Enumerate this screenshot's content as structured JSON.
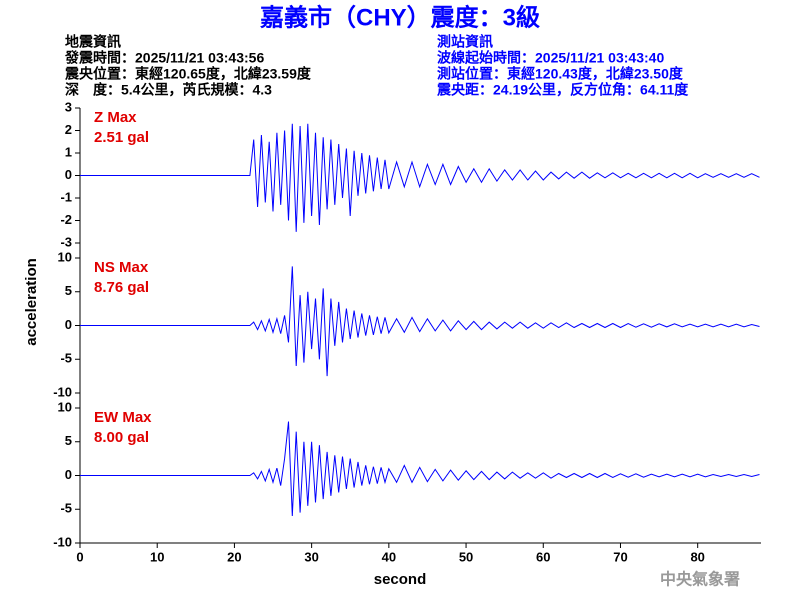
{
  "header": {
    "title": "嘉義市（CHY）震度：3級",
    "left": [
      "地震資訊",
      "發震時間：2025/11/21 03:43:56",
      "震央位置：東經120.65度，北緯23.59度",
      "深　度：5.4公里，芮氏規模：4.3"
    ],
    "right": [
      "測站資訊",
      "波線起始時間：2025/11/21 03:43:40",
      "測站位置：東經120.43度，北緯23.50度",
      "震央距：24.19公里，反方位角：64.11度"
    ]
  },
  "footer": "中央氣象署",
  "chart_data": [
    {
      "type": "line",
      "annotations": [
        "Z Max",
        "2.51 gal"
      ],
      "xlim": [
        0,
        88.2
      ],
      "ylim": [
        -3,
        3
      ],
      "yticks": [
        -3,
        -2,
        -1,
        0,
        1,
        2,
        3
      ],
      "x": [
        0,
        22,
        22.5,
        23,
        23.5,
        24,
        24.5,
        25,
        25.5,
        26,
        26.5,
        27,
        27.5,
        28,
        28.5,
        29,
        29.5,
        30,
        30.5,
        31,
        31.5,
        32,
        32.5,
        33,
        33.5,
        34,
        34.5,
        35,
        35.5,
        36,
        36.5,
        37,
        37.5,
        38,
        38.5,
        39,
        39.5,
        40,
        41,
        42,
        43,
        44,
        45,
        46,
        47,
        48,
        49,
        50,
        51,
        52,
        53,
        54,
        55,
        56,
        57,
        58,
        59,
        60,
        61,
        62,
        63,
        64,
        65,
        66,
        67,
        68,
        69,
        70,
        71,
        72,
        73,
        74,
        75,
        76,
        77,
        78,
        79,
        80,
        81,
        82,
        83,
        84,
        85,
        86,
        87,
        88
      ],
      "series": [
        {
          "color": "#0000ff",
          "values": [
            0,
            0,
            1.6,
            -1.4,
            1.8,
            -1.2,
            1.5,
            -1.6,
            1.9,
            -1.3,
            2.0,
            -2.0,
            2.3,
            -2.5,
            2.2,
            -2.1,
            2.3,
            -1.8,
            1.9,
            -2.2,
            1.7,
            -1.5,
            1.6,
            -1.3,
            1.4,
            -1.0,
            1.2,
            -1.8,
            1.1,
            -0.9,
            1.0,
            -0.8,
            0.9,
            -0.7,
            0.8,
            -0.6,
            0.7,
            -0.6,
            0.6,
            -0.5,
            0.6,
            -0.5,
            0.5,
            -0.4,
            0.5,
            -0.4,
            0.4,
            -0.3,
            0.3,
            -0.3,
            0.3,
            -0.25,
            0.25,
            -0.2,
            0.25,
            -0.2,
            0.2,
            -0.2,
            0.15,
            -0.15,
            0.15,
            -0.12,
            0.15,
            -0.12,
            0.12,
            -0.1,
            0.12,
            -0.1,
            0.1,
            -0.1,
            0.1,
            -0.1,
            0.1,
            -0.1,
            0.1,
            -0.1,
            0.1,
            -0.1,
            0.08,
            -0.08,
            0.08,
            -0.08,
            0.08,
            -0.08,
            0.08,
            -0.08
          ]
        }
      ]
    },
    {
      "type": "line",
      "annotations": [
        "NS Max",
        "8.76 gal"
      ],
      "ylabel": "acceleration",
      "xlim": [
        0,
        88.2
      ],
      "ylim": [
        -10,
        10
      ],
      "yticks": [
        -10,
        -5,
        0,
        5,
        10
      ],
      "x": [
        0,
        22,
        22.5,
        23,
        23.5,
        24,
        24.5,
        25,
        25.5,
        26,
        26.5,
        27,
        27.5,
        28,
        28.5,
        29,
        29.5,
        30,
        30.5,
        31,
        31.5,
        32,
        32.5,
        33,
        33.5,
        34,
        34.5,
        35,
        35.5,
        36,
        36.5,
        37,
        37.5,
        38,
        38.5,
        39,
        39.5,
        40,
        41,
        42,
        43,
        44,
        45,
        46,
        47,
        48,
        49,
        50,
        51,
        52,
        53,
        54,
        55,
        56,
        57,
        58,
        59,
        60,
        61,
        62,
        63,
        64,
        65,
        66,
        67,
        68,
        69,
        70,
        71,
        72,
        73,
        74,
        75,
        76,
        77,
        78,
        79,
        80,
        81,
        82,
        83,
        84,
        85,
        86,
        87,
        88
      ],
      "series": [
        {
          "color": "#0000ff",
          "values": [
            0,
            0,
            0.5,
            -0.6,
            0.7,
            -0.8,
            0.9,
            -1.0,
            1.0,
            -1.2,
            1.5,
            -2.5,
            8.76,
            -6.0,
            4.5,
            -5.5,
            5.0,
            -3.5,
            4.0,
            -5.0,
            5.5,
            -7.5,
            4.0,
            -3.0,
            3.5,
            -2.5,
            2.5,
            -2.0,
            2.2,
            -1.8,
            1.8,
            -1.5,
            1.5,
            -1.4,
            1.3,
            -1.2,
            1.2,
            -1.1,
            1.0,
            -1.0,
            1.2,
            -0.9,
            1.0,
            -0.8,
            0.8,
            -0.8,
            0.7,
            -0.6,
            0.6,
            -0.6,
            0.5,
            -0.5,
            0.5,
            -0.4,
            0.5,
            -0.4,
            0.4,
            -0.4,
            0.4,
            -0.3,
            0.4,
            -0.3,
            0.3,
            -0.3,
            0.3,
            -0.3,
            0.3,
            -0.3,
            0.3,
            -0.25,
            0.25,
            -0.25,
            0.25,
            -0.2,
            0.25,
            -0.2,
            0.2,
            -0.2,
            0.2,
            -0.2,
            0.2,
            -0.2,
            0.2,
            -0.2,
            0.15,
            -0.15
          ]
        }
      ]
    },
    {
      "type": "line",
      "annotations": [
        "EW Max",
        "8.00 gal"
      ],
      "xlabel": "second",
      "xlim": [
        0,
        88.2
      ],
      "ylim": [
        -10,
        10
      ],
      "yticks": [
        -10,
        -5,
        0,
        5,
        10
      ],
      "xticks": [
        0,
        10,
        20,
        30,
        40,
        50,
        60,
        70,
        80
      ],
      "x": [
        0,
        22,
        22.5,
        23,
        23.5,
        24,
        24.5,
        25,
        25.5,
        26,
        26.5,
        27,
        27.5,
        28,
        28.5,
        29,
        29.5,
        30,
        30.5,
        31,
        31.5,
        32,
        32.5,
        33,
        33.5,
        34,
        34.5,
        35,
        35.5,
        36,
        36.5,
        37,
        37.5,
        38,
        38.5,
        39,
        39.5,
        40,
        41,
        42,
        43,
        44,
        45,
        46,
        47,
        48,
        49,
        50,
        51,
        52,
        53,
        54,
        55,
        56,
        57,
        58,
        59,
        60,
        61,
        62,
        63,
        64,
        65,
        66,
        67,
        68,
        69,
        70,
        71,
        72,
        73,
        74,
        75,
        76,
        77,
        78,
        79,
        80,
        81,
        82,
        83,
        84,
        85,
        86,
        87,
        88
      ],
      "series": [
        {
          "color": "#0000ff",
          "values": [
            0,
            0,
            0.4,
            -0.5,
            0.6,
            -0.8,
            0.9,
            -1.0,
            1.1,
            -1.5,
            2.5,
            8.0,
            -6.0,
            6.5,
            -5.5,
            5.0,
            -4.5,
            5.0,
            -4.0,
            4.5,
            -3.5,
            3.5,
            -3.0,
            3.0,
            -2.5,
            2.8,
            -2.0,
            2.5,
            -1.8,
            2.0,
            -1.5,
            1.5,
            -1.3,
            1.3,
            -1.2,
            1.2,
            -1.0,
            1.0,
            -1.0,
            1.5,
            -1.0,
            1.2,
            -0.9,
            0.9,
            -0.8,
            0.8,
            -0.7,
            0.7,
            -0.6,
            0.6,
            -0.6,
            0.5,
            -0.5,
            0.5,
            -0.4,
            0.4,
            -0.4,
            0.4,
            -0.4,
            0.3,
            -0.3,
            0.3,
            -0.3,
            0.3,
            -0.3,
            0.3,
            -0.3,
            0.25,
            -0.25,
            0.25,
            -0.25,
            0.2,
            -0.2,
            0.2,
            -0.2,
            0.2,
            -0.2,
            0.2,
            -0.2,
            0.15,
            -0.15,
            0.15,
            -0.15,
            0.15,
            -0.15,
            0.15
          ]
        }
      ]
    }
  ]
}
